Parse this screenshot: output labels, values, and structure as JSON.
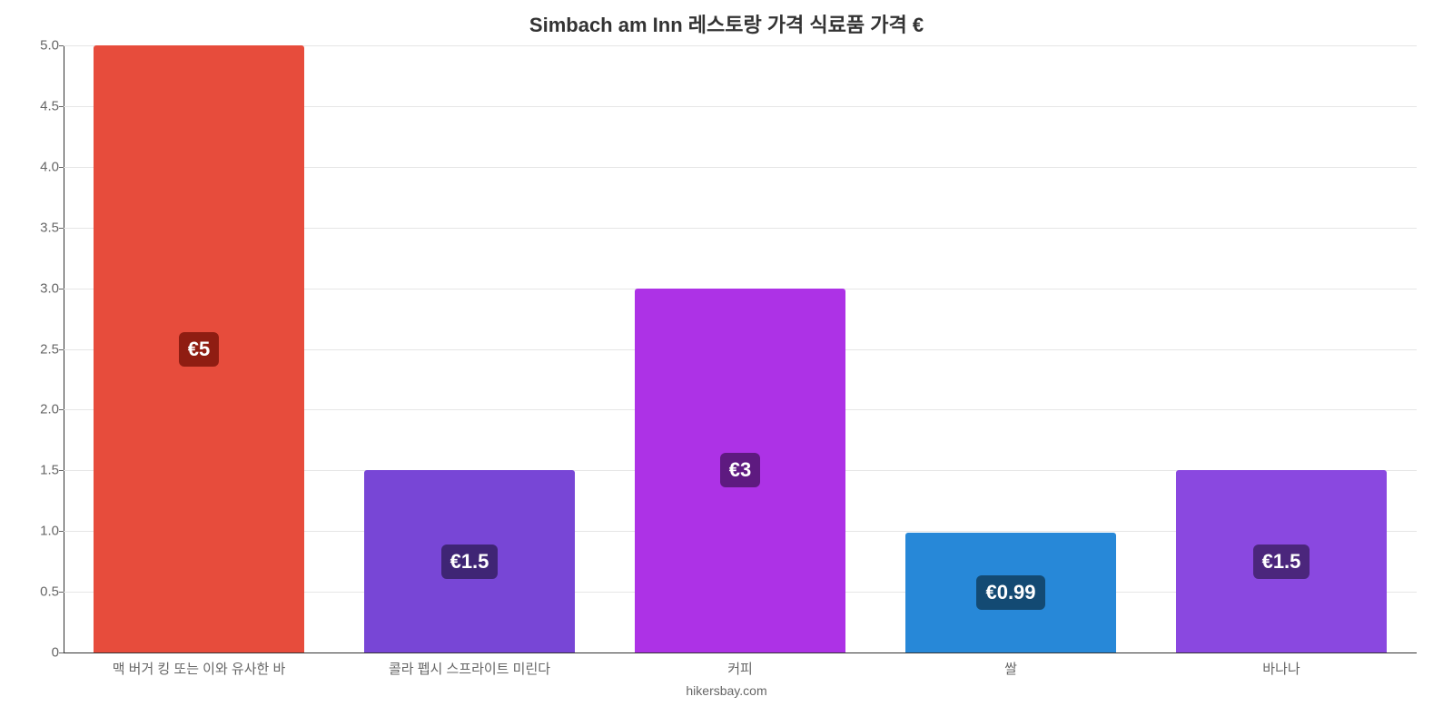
{
  "chart": {
    "type": "bar",
    "title": "Simbach am Inn 레스토랑 가격 식료품 가격 €",
    "title_fontsize": 22,
    "title_color": "#333333",
    "footer": "hikersbay.com",
    "footer_fontsize": 14,
    "footer_color": "#666666",
    "background_color": "#ffffff",
    "grid_color": "#e6e6e6",
    "axis_color": "#333333",
    "tick_color": "#666666",
    "tick_fontsize": 15,
    "x_tick_fontsize": 15,
    "ylim": [
      0,
      5.0
    ],
    "ytick_step": 0.5,
    "yticks": [
      "0",
      "0.5",
      "1.0",
      "1.5",
      "2.0",
      "2.5",
      "3.0",
      "3.5",
      "4.0",
      "4.5",
      "5.0"
    ],
    "bar_width_pct": 78,
    "categories": [
      "맥 버거 킹 또는 이와 유사한 바",
      "콜라 펩시 스프라이트 미린다",
      "커피",
      "쌀",
      "바나나"
    ],
    "values": [
      5,
      1.5,
      3,
      0.99,
      1.5
    ],
    "bar_colors": [
      "#e74c3c",
      "#7846d6",
      "#ad32e6",
      "#2788d8",
      "#8a48e0"
    ],
    "value_labels": [
      "€5",
      "€1.5",
      "€3",
      "€0.99",
      "€1.5"
    ],
    "value_label_bg": [
      "#8f1d12",
      "#3f2575",
      "#5e1a80",
      "#134a73",
      "#4b267c"
    ],
    "value_label_fontsize": 22,
    "value_label_color": "#ffffff"
  }
}
